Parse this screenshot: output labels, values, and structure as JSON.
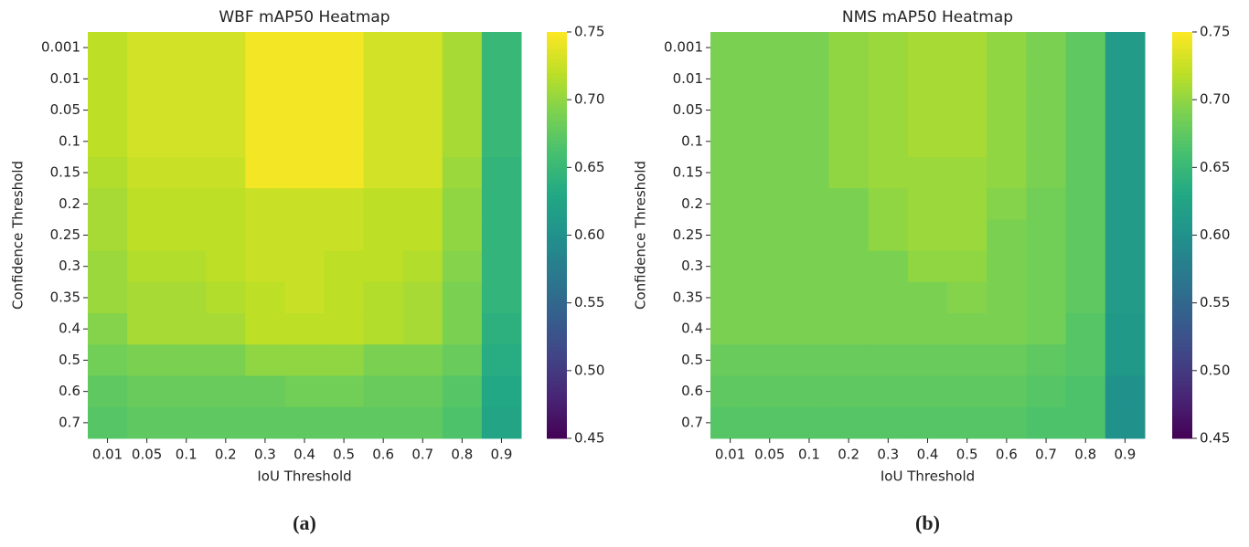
{
  "chart_data": [
    {
      "type": "heatmap",
      "title": "WBF mAP50 Heatmap",
      "x_label": "IoU Threshold",
      "y_label": "Confidence Threshold",
      "caption": "(a)",
      "colormap": "viridis",
      "x": [
        "0.01",
        "0.05",
        "0.1",
        "0.2",
        "0.3",
        "0.4",
        "0.5",
        "0.6",
        "0.7",
        "0.8",
        "0.9"
      ],
      "y": [
        "0.001",
        "0.01",
        "0.05",
        "0.1",
        "0.15",
        "0.2",
        "0.25",
        "0.3",
        "0.35",
        "0.4",
        "0.5",
        "0.6",
        "0.7"
      ],
      "values": [
        [
          0.72,
          0.73,
          0.73,
          0.73,
          0.745,
          0.745,
          0.745,
          0.73,
          0.73,
          0.71,
          0.65
        ],
        [
          0.72,
          0.73,
          0.73,
          0.73,
          0.745,
          0.745,
          0.745,
          0.73,
          0.73,
          0.71,
          0.65
        ],
        [
          0.72,
          0.73,
          0.73,
          0.73,
          0.745,
          0.745,
          0.745,
          0.73,
          0.73,
          0.71,
          0.65
        ],
        [
          0.72,
          0.73,
          0.73,
          0.73,
          0.745,
          0.745,
          0.745,
          0.73,
          0.73,
          0.71,
          0.65
        ],
        [
          0.715,
          0.725,
          0.725,
          0.725,
          0.745,
          0.745,
          0.745,
          0.73,
          0.73,
          0.705,
          0.645
        ],
        [
          0.71,
          0.72,
          0.72,
          0.72,
          0.725,
          0.725,
          0.725,
          0.72,
          0.72,
          0.7,
          0.645
        ],
        [
          0.71,
          0.72,
          0.72,
          0.72,
          0.725,
          0.725,
          0.725,
          0.72,
          0.72,
          0.7,
          0.645
        ],
        [
          0.705,
          0.715,
          0.715,
          0.72,
          0.725,
          0.725,
          0.72,
          0.72,
          0.715,
          0.695,
          0.645
        ],
        [
          0.705,
          0.71,
          0.71,
          0.715,
          0.72,
          0.725,
          0.72,
          0.715,
          0.71,
          0.69,
          0.645
        ],
        [
          0.695,
          0.71,
          0.71,
          0.71,
          0.72,
          0.72,
          0.72,
          0.715,
          0.71,
          0.69,
          0.64
        ],
        [
          0.685,
          0.69,
          0.69,
          0.69,
          0.7,
          0.7,
          0.7,
          0.69,
          0.69,
          0.68,
          0.635
        ],
        [
          0.675,
          0.68,
          0.68,
          0.68,
          0.68,
          0.685,
          0.685,
          0.68,
          0.68,
          0.67,
          0.63
        ],
        [
          0.67,
          0.675,
          0.675,
          0.675,
          0.675,
          0.675,
          0.675,
          0.675,
          0.675,
          0.665,
          0.625
        ]
      ],
      "clim": [
        0.45,
        0.75
      ],
      "cticks": [
        0.45,
        {
          "value": 0.5,
          "label": "0.50"
        },
        0.55,
        {
          "value": 0.6,
          "label": "0.60"
        },
        0.65,
        {
          "value": 0.7,
          "label": "0.70"
        },
        0.75
      ]
    },
    {
      "type": "heatmap",
      "title": "NMS mAP50 Heatmap",
      "x_label": "IoU Threshold",
      "y_label": "Confidence Threshold",
      "caption": "(b)",
      "colormap": "viridis",
      "x": [
        "0.01",
        "0.05",
        "0.1",
        "0.2",
        "0.3",
        "0.4",
        "0.5",
        "0.6",
        "0.7",
        "0.8",
        "0.9"
      ],
      "y": [
        "0.001",
        "0.01",
        "0.05",
        "0.1",
        "0.15",
        "0.2",
        "0.25",
        "0.3",
        "0.35",
        "0.4",
        "0.5",
        "0.6",
        "0.7"
      ],
      "values": [
        [
          0.69,
          0.69,
          0.69,
          0.7,
          0.705,
          0.71,
          0.71,
          0.7,
          0.69,
          0.675,
          0.615
        ],
        [
          0.69,
          0.69,
          0.69,
          0.7,
          0.705,
          0.71,
          0.71,
          0.7,
          0.69,
          0.675,
          0.615
        ],
        [
          0.69,
          0.69,
          0.69,
          0.7,
          0.705,
          0.71,
          0.71,
          0.7,
          0.69,
          0.675,
          0.615
        ],
        [
          0.69,
          0.69,
          0.69,
          0.7,
          0.705,
          0.71,
          0.71,
          0.7,
          0.69,
          0.675,
          0.615
        ],
        [
          0.69,
          0.69,
          0.69,
          0.7,
          0.705,
          0.705,
          0.705,
          0.7,
          0.69,
          0.675,
          0.615
        ],
        [
          0.69,
          0.69,
          0.69,
          0.69,
          0.7,
          0.705,
          0.705,
          0.695,
          0.685,
          0.675,
          0.615
        ],
        [
          0.69,
          0.69,
          0.69,
          0.69,
          0.7,
          0.705,
          0.705,
          0.69,
          0.685,
          0.675,
          0.615
        ],
        [
          0.69,
          0.69,
          0.69,
          0.69,
          0.69,
          0.7,
          0.7,
          0.69,
          0.685,
          0.675,
          0.615
        ],
        [
          0.69,
          0.69,
          0.69,
          0.69,
          0.69,
          0.69,
          0.695,
          0.69,
          0.685,
          0.675,
          0.615
        ],
        [
          0.69,
          0.69,
          0.69,
          0.69,
          0.69,
          0.69,
          0.69,
          0.69,
          0.685,
          0.67,
          0.61
        ],
        [
          0.68,
          0.68,
          0.68,
          0.68,
          0.68,
          0.68,
          0.68,
          0.68,
          0.675,
          0.67,
          0.61
        ],
        [
          0.675,
          0.675,
          0.675,
          0.675,
          0.675,
          0.675,
          0.675,
          0.675,
          0.67,
          0.665,
          0.6
        ],
        [
          0.67,
          0.67,
          0.67,
          0.67,
          0.67,
          0.67,
          0.67,
          0.67,
          0.665,
          0.665,
          0.6
        ]
      ],
      "clim": [
        0.45,
        0.75
      ],
      "cticks": [
        0.45,
        {
          "value": 0.5,
          "label": "0.50"
        },
        0.55,
        {
          "value": 0.6,
          "label": "0.60"
        },
        0.65,
        {
          "value": 0.7,
          "label": "0.70"
        },
        0.75
      ]
    }
  ]
}
